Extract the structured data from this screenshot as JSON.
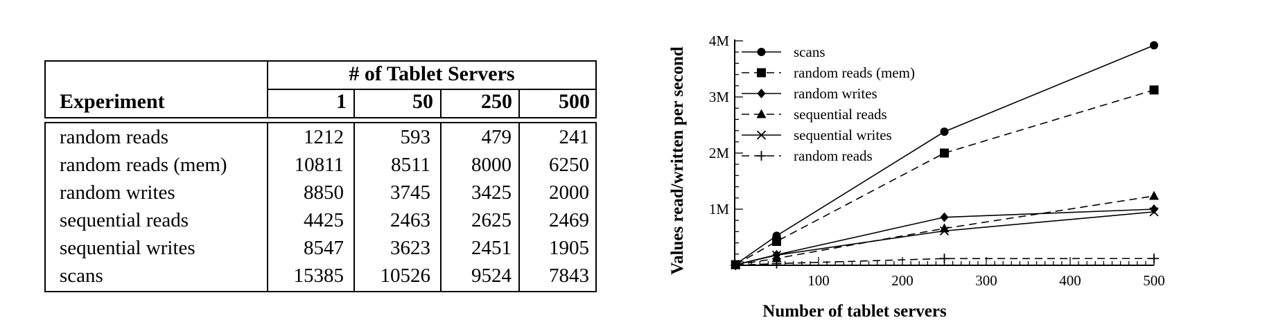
{
  "table": {
    "title": "# of Tablet Servers",
    "row_header": "Experiment",
    "columns": [
      "1",
      "50",
      "250",
      "500"
    ],
    "rows": [
      {
        "label": "random reads",
        "values": [
          "1212",
          "593",
          "479",
          "241"
        ]
      },
      {
        "label": "random reads (mem)",
        "values": [
          "10811",
          "8511",
          "8000",
          "6250"
        ]
      },
      {
        "label": "random writes",
        "values": [
          "8850",
          "3745",
          "3425",
          "2000"
        ]
      },
      {
        "label": "sequential reads",
        "values": [
          "4425",
          "2463",
          "2625",
          "2469"
        ]
      },
      {
        "label": "sequential writes",
        "values": [
          "8547",
          "3623",
          "2451",
          "1905"
        ]
      },
      {
        "label": "scans",
        "values": [
          "15385",
          "10526",
          "9524",
          "7843"
        ]
      }
    ]
  },
  "chart_data": {
    "type": "line",
    "xlabel": "Number of tablet servers",
    "ylabel": "Values read/written per second",
    "xlim": [
      0,
      500
    ],
    "ylim": [
      0,
      4000000
    ],
    "xticks": [
      100,
      200,
      300,
      400,
      500
    ],
    "xtick_labels": [
      "100",
      "200",
      "300",
      "400",
      "500"
    ],
    "yticks": [
      1000000,
      2000000,
      3000000,
      4000000
    ],
    "ytick_labels": [
      "1M",
      "2M",
      "3M",
      "4M"
    ],
    "grid": false,
    "legend_position": "top-left",
    "x": [
      1,
      50,
      250,
      500
    ],
    "series": [
      {
        "name": "scans",
        "marker": "circle",
        "dash": false,
        "values": [
          15385,
          526300,
          2381000,
          3921500
        ]
      },
      {
        "name": "random reads (mem)",
        "marker": "square",
        "dash": true,
        "values": [
          10811,
          425550,
          2000000,
          3125000
        ]
      },
      {
        "name": "random writes",
        "marker": "diamond",
        "dash": false,
        "values": [
          8850,
          187250,
          856250,
          1000000
        ]
      },
      {
        "name": "sequential reads",
        "marker": "triangle",
        "dash": true,
        "values": [
          4425,
          123150,
          656250,
          1234500
        ]
      },
      {
        "name": "sequential writes",
        "marker": "x",
        "dash": false,
        "values": [
          8547,
          181150,
          612750,
          952500
        ]
      },
      {
        "name": "random reads",
        "marker": "plus",
        "dash": true,
        "values": [
          1212,
          29650,
          119750,
          120500
        ]
      }
    ]
  }
}
